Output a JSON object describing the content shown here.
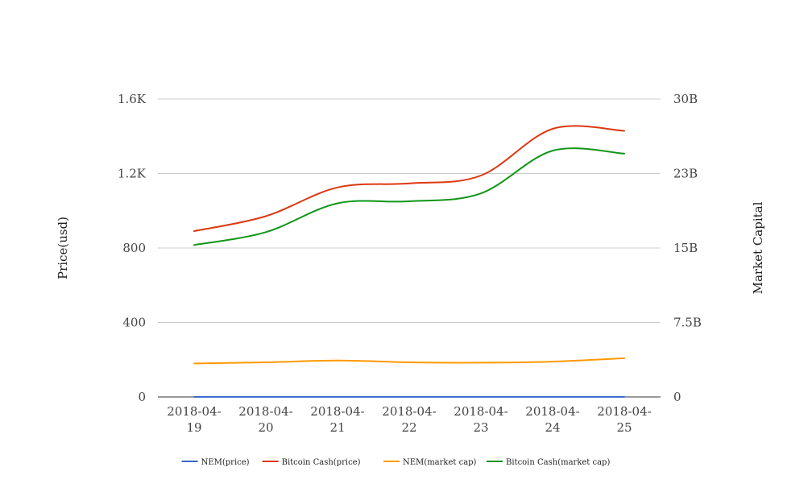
{
  "chart_data": {
    "type": "line",
    "title": "",
    "x": [
      "2018-04-19",
      "2018-04-20",
      "2018-04-21",
      "2018-04-22",
      "2018-04-23",
      "2018-04-24",
      "2018-04-25"
    ],
    "x_tick_labels": [
      [
        "2018-04-",
        "19"
      ],
      [
        "2018-04-",
        "20"
      ],
      [
        "2018-04-",
        "21"
      ],
      [
        "2018-04-",
        "22"
      ],
      [
        "2018-04-",
        "23"
      ],
      [
        "2018-04-",
        "24"
      ],
      [
        "2018-04-",
        "25"
      ]
    ],
    "left_axis": {
      "label": "Price(usd)",
      "range": [
        0,
        1600
      ],
      "ticks": [
        0,
        400,
        800,
        1200,
        1600
      ],
      "tick_labels": [
        "0",
        "400",
        "800",
        "1.2K",
        "1.6K"
      ]
    },
    "right_axis": {
      "label": "Market Capital",
      "range": [
        0,
        30000000000
      ],
      "ticks": [
        0,
        7500000000,
        15000000000,
        22500000000,
        30000000000
      ],
      "tick_labels": [
        "0",
        "7.5B",
        "15B",
        "23B",
        "30B"
      ]
    },
    "grid": true,
    "legend_position": "bottom",
    "series": [
      {
        "name": "NEM(price)",
        "axis": "left",
        "color": "#3366cc",
        "values": [
          0.39,
          0.41,
          0.43,
          0.41,
          0.4,
          0.42,
          0.44
        ]
      },
      {
        "name": "Bitcoin Cash(price)",
        "axis": "right",
        "color": "#dc3912",
        "values": [
          16700000000,
          18200000000,
          21100000000,
          21500000000,
          22300000000,
          27000000000,
          26800000000
        ]
      },
      {
        "name": "NEM(market cap)",
        "axis": "left",
        "color": "#ff9900",
        "values": [
          180,
          186,
          196,
          186,
          184,
          190,
          208
        ]
      },
      {
        "name": "Bitcoin Cash(market cap)",
        "axis": "right",
        "color": "#109618",
        "values": [
          15300000000,
          16600000000,
          19500000000,
          19700000000,
          20500000000,
          24800000000,
          24500000000
        ]
      }
    ]
  }
}
